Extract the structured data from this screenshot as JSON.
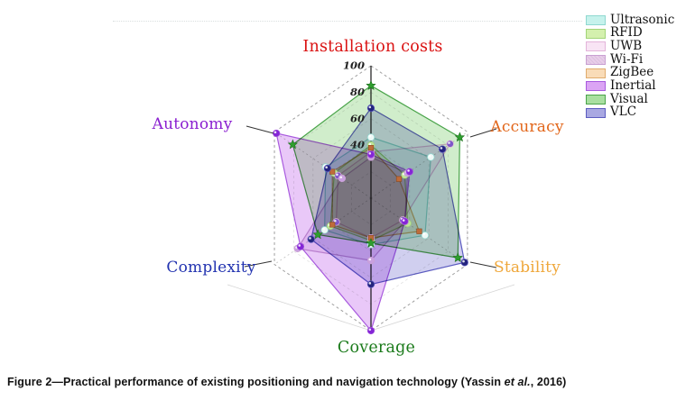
{
  "caption": {
    "prefix": "Figure 2—Practical performance of existing positioning and navigation technology (Yassin ",
    "italic": "et al.",
    "suffix": ", 2016)"
  },
  "chart_data": {
    "type": "radar",
    "axes": [
      "Installation costs",
      "Accuracy",
      "Stability",
      "Coverage",
      "Complexity",
      "Autonomy"
    ],
    "axis_label_colors": [
      "#da1212",
      "#e2661a",
      "#efa73a",
      "#1a7a1a",
      "#2233b0",
      "#8a1fd0"
    ],
    "scale": {
      "min": 0,
      "max": 100,
      "ticks": [
        40,
        60,
        80,
        100
      ]
    },
    "grid": "dashed-hexagon-rings",
    "legend_position": "top-right",
    "series": [
      {
        "name": "Ultrasonic",
        "values": [
          46,
          62,
          56,
          35,
          48,
          47
        ],
        "fill": "#c6f2ec",
        "fill_alpha": 0.45,
        "line": "#8fd8d0",
        "marker": "circle",
        "marker_color": "#eef8f6"
      },
      {
        "name": "RFID",
        "values": [
          40,
          35,
          38,
          32,
          42,
          38
        ],
        "fill": "#d4f0ae",
        "fill_alpha": 0.45,
        "line": "#a2d478",
        "marker": "circle",
        "marker_color": "#bfe49a"
      },
      {
        "name": "UWB",
        "values": [
          35,
          82,
          33,
          30,
          36,
          34
        ],
        "fill": "#f8e4f4",
        "fill_alpha": 0.45,
        "line": "#e3b4da",
        "marker": "circle",
        "marker_color": "#7e57c8"
      },
      {
        "name": "Wi-Fi",
        "values": [
          31,
          38,
          35,
          47,
          76,
          30
        ],
        "fill": "#e9cdea",
        "fill_alpha": 0.45,
        "line": "#c9a0d2",
        "marker": "circle",
        "marker_color": "#c9a0e0",
        "textured": true
      },
      {
        "name": "ZigBee",
        "values": [
          38,
          29,
          50,
          30,
          40,
          40
        ],
        "fill": "#f9dcb8",
        "fill_alpha": 0.45,
        "line": "#e0ac6e",
        "marker": "square",
        "marker_color": "#bf6b3a"
      },
      {
        "name": "Inertial",
        "values": [
          33,
          40,
          35,
          100,
          73,
          98
        ],
        "fill": "#dba4f4",
        "fill_alpha": 0.6,
        "line": "#a85ade",
        "marker": "circle",
        "marker_color": "#8426d6"
      },
      {
        "name": "Visual",
        "values": [
          85,
          92,
          90,
          34,
          55,
          81
        ],
        "fill": "#a9dfa0",
        "fill_alpha": 0.55,
        "line": "#4aa44a",
        "marker": "star",
        "marker_color": "#2e9e2e"
      },
      {
        "name": "VLC",
        "values": [
          68,
          74,
          97,
          65,
          62,
          45
        ],
        "fill": "#a9a8e2",
        "fill_alpha": 0.55,
        "line": "#5c5cc0",
        "marker": "circle",
        "marker_color": "#24247e"
      }
    ]
  }
}
